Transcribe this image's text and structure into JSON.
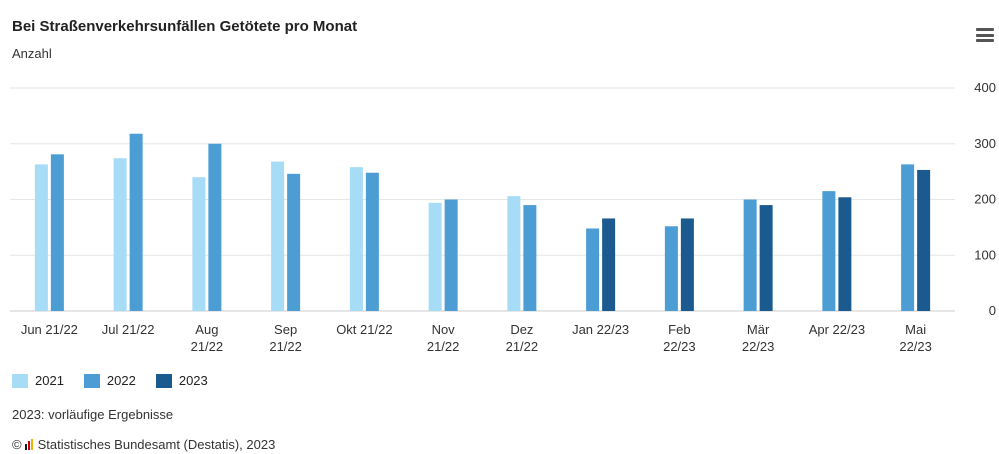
{
  "chart_data": {
    "type": "bar",
    "title": "Bei Straßenverkehrsunfällen Getötete pro Monat",
    "subtitle": "Anzahl",
    "categories": [
      [
        "Jun 21/22"
      ],
      [
        "Jul 21/22"
      ],
      [
        "Aug",
        "21/22"
      ],
      [
        "Sep",
        "21/22"
      ],
      [
        "Okt 21/22"
      ],
      [
        "Nov",
        "21/22"
      ],
      [
        "Dez",
        "21/22"
      ],
      [
        "Jan 22/23"
      ],
      [
        "Feb",
        "22/23"
      ],
      [
        "Mär",
        "22/23"
      ],
      [
        "Apr 22/23"
      ],
      [
        "Mai",
        "22/23"
      ]
    ],
    "series": [
      {
        "name": "2021",
        "color": "#a6dcf5",
        "values": [
          263,
          274,
          240,
          268,
          258,
          194,
          206,
          null,
          null,
          null,
          null,
          null
        ]
      },
      {
        "name": "2022",
        "color": "#4b9dd4",
        "values": [
          281,
          318,
          300,
          246,
          248,
          200,
          190,
          148,
          152,
          200,
          215,
          263
        ]
      },
      {
        "name": "2023",
        "color": "#1a5a8e",
        "values": [
          null,
          null,
          null,
          null,
          null,
          null,
          null,
          166,
          166,
          190,
          204,
          253
        ]
      }
    ],
    "ylim": [
      0,
      400
    ],
    "yticks": [
      0,
      100,
      200,
      300,
      400
    ],
    "axis_position": "right",
    "grid": true,
    "legend_position": "bottom-left"
  },
  "note": "2023: vorläufige Ergebnisse",
  "source": "Statistisches Bundesamt (Destatis), 2023",
  "copyright_symbol": "©",
  "menu_icon": "hamburger-menu-icon"
}
